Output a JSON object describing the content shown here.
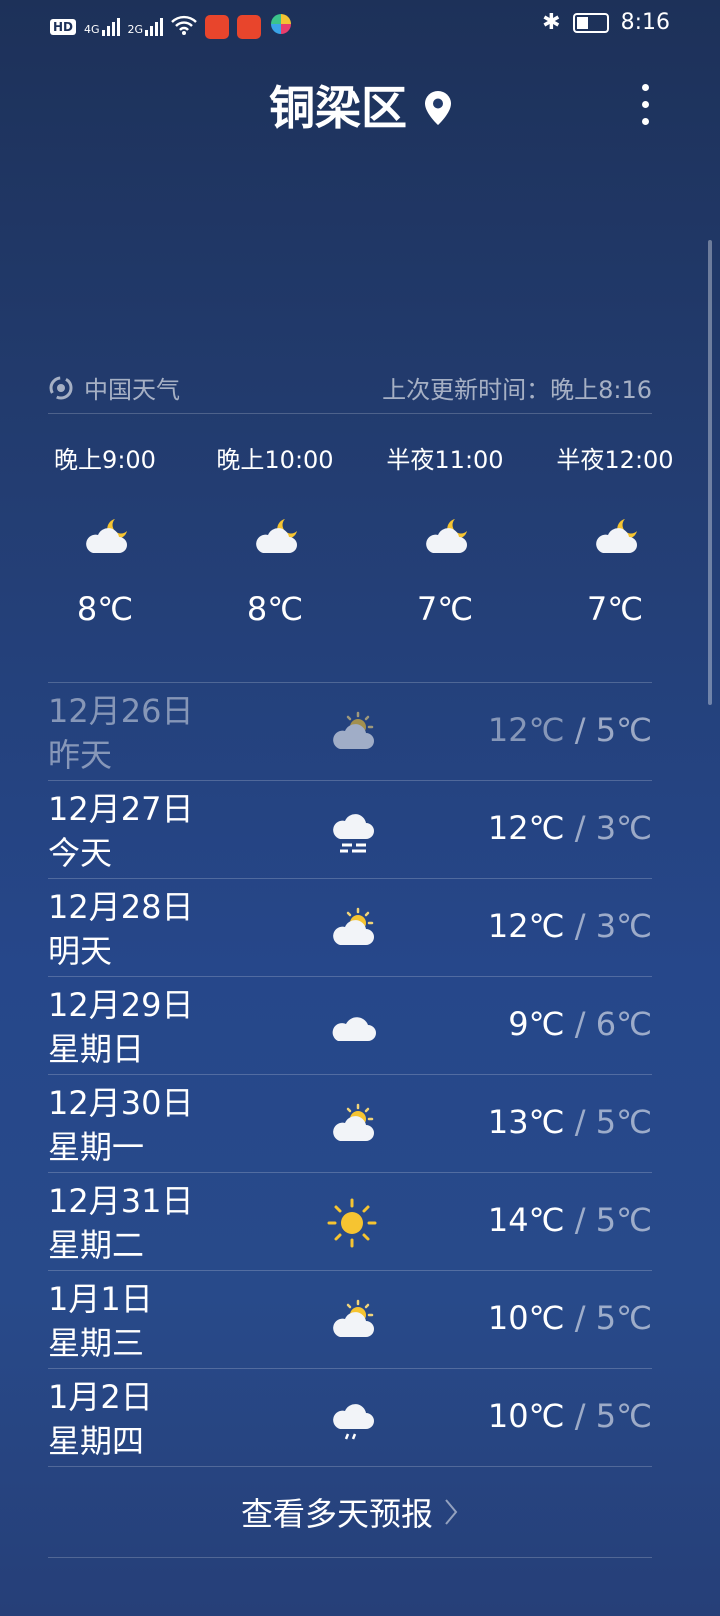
{
  "status_bar": {
    "time": "8:16",
    "network1": "4G",
    "network2": "2G",
    "hd": "HD"
  },
  "header": {
    "title": "铜梁区"
  },
  "source": {
    "name": "中国天气",
    "updated": "上次更新时间：晚上8:16"
  },
  "hourly": [
    {
      "time": "晚上9:00",
      "icon": "moon-cloud",
      "temp": "8℃"
    },
    {
      "time": "晚上10:00",
      "icon": "moon-cloud",
      "temp": "8℃"
    },
    {
      "time": "半夜11:00",
      "icon": "moon-cloud",
      "temp": "7℃"
    },
    {
      "time": "半夜12:00",
      "icon": "moon-cloud",
      "temp": "7℃"
    }
  ],
  "days": [
    {
      "date": "12月26日",
      "label": "昨天",
      "icon": "sun-cloud",
      "high": "12℃",
      "low": "5℃",
      "past": true
    },
    {
      "date": "12月27日",
      "label": "今天",
      "icon": "fog",
      "high": "12℃",
      "low": "3℃"
    },
    {
      "date": "12月28日",
      "label": "明天",
      "icon": "sun-cloud",
      "high": "12℃",
      "low": "3℃"
    },
    {
      "date": "12月29日",
      "label": "星期日",
      "icon": "cloud",
      "high": "9℃",
      "low": "6℃"
    },
    {
      "date": "12月30日",
      "label": "星期一",
      "icon": "sun-cloud",
      "high": "13℃",
      "low": "5℃"
    },
    {
      "date": "12月31日",
      "label": "星期二",
      "icon": "sun",
      "high": "14℃",
      "low": "5℃"
    },
    {
      "date": "1月1日",
      "label": "星期三",
      "icon": "sun-cloud",
      "high": "10℃",
      "low": "5℃"
    },
    {
      "date": "1月2日",
      "label": "星期四",
      "icon": "rain",
      "high": "10℃",
      "low": "5℃"
    }
  ],
  "more_forecast": "查看多天预报",
  "separator": " / "
}
